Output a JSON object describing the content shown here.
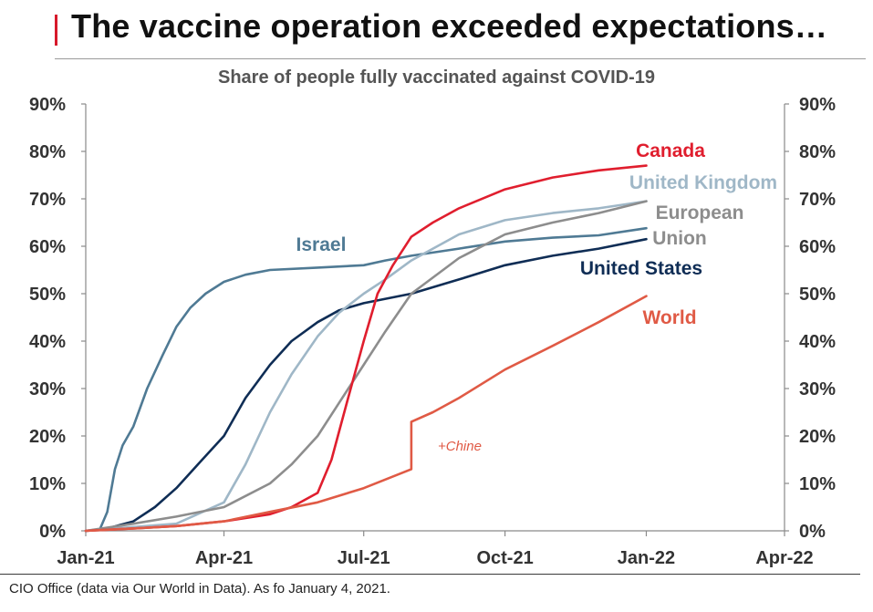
{
  "header": {
    "title": "The vaccine operation exceeded expectations…",
    "accent": "#d7192b"
  },
  "footer": {
    "source": "CIO Office (data via Our World in Data). As fo January 4, 2021."
  },
  "chart_data": {
    "type": "line",
    "title": "Share of people fully vaccinated against COVID-19",
    "xlabel": "",
    "ylabel": "",
    "x_ticks": [
      "Jan-21",
      "Apr-21",
      "Jul-21",
      "Oct-21",
      "Jan-22",
      "Apr-22"
    ],
    "y_ticks": [
      "0%",
      "10%",
      "20%",
      "30%",
      "40%",
      "50%",
      "60%",
      "70%",
      "80%",
      "90%"
    ],
    "ylim": [
      0,
      90
    ],
    "xlim": [
      "2021-01-01",
      "2022-04-01"
    ],
    "grid": false,
    "secondary_y_axis": true,
    "series": [
      {
        "name": "Israel",
        "color": "#4f7a94",
        "x": [
          "2021-01-01",
          "2021-01-10",
          "2021-01-15",
          "2021-01-20",
          "2021-01-25",
          "2021-02-01",
          "2021-02-10",
          "2021-02-20",
          "2021-03-01",
          "2021-03-10",
          "2021-03-20",
          "2021-04-01",
          "2021-04-15",
          "2021-05-01",
          "2021-06-01",
          "2021-07-01",
          "2021-07-15",
          "2021-08-01",
          "2021-09-01",
          "2021-10-01",
          "2021-11-01",
          "2021-12-01",
          "2022-01-01"
        ],
        "values": [
          0,
          0.2,
          4,
          13,
          18,
          22,
          30,
          37,
          43,
          47,
          50,
          52.5,
          54,
          55,
          55.5,
          56,
          57,
          58,
          59.5,
          61,
          61.8,
          62.3,
          63.8
        ]
      },
      {
        "name": "United States",
        "color": "#0f2d55",
        "x": [
          "2021-01-01",
          "2021-01-15",
          "2021-02-01",
          "2021-02-15",
          "2021-03-01",
          "2021-03-15",
          "2021-04-01",
          "2021-04-15",
          "2021-05-01",
          "2021-05-15",
          "2021-06-01",
          "2021-06-15",
          "2021-07-01",
          "2021-08-01",
          "2021-09-01",
          "2021-10-01",
          "2021-11-01",
          "2021-12-01",
          "2022-01-01"
        ],
        "values": [
          0,
          0.5,
          2,
          5,
          9,
          14,
          20,
          28,
          35,
          40,
          44,
          46.5,
          48,
          50,
          53,
          56,
          58,
          59.5,
          61.5
        ]
      },
      {
        "name": "United Kingdom",
        "color": "#9fb7c7",
        "x": [
          "2021-01-01",
          "2021-02-01",
          "2021-03-01",
          "2021-04-01",
          "2021-04-15",
          "2021-05-01",
          "2021-05-15",
          "2021-06-01",
          "2021-06-15",
          "2021-07-01",
          "2021-07-15",
          "2021-08-01",
          "2021-09-01",
          "2021-10-01",
          "2021-11-01",
          "2021-12-01",
          "2022-01-01"
        ],
        "values": [
          0,
          0.8,
          1.5,
          6,
          14,
          25,
          33,
          41,
          46,
          50,
          53,
          57,
          62.5,
          65.5,
          67,
          68,
          69.5
        ]
      },
      {
        "name": "European Union",
        "color": "#8d8d8d",
        "x": [
          "2021-01-01",
          "2021-02-01",
          "2021-03-01",
          "2021-04-01",
          "2021-05-01",
          "2021-05-15",
          "2021-06-01",
          "2021-06-15",
          "2021-07-01",
          "2021-07-15",
          "2021-08-01",
          "2021-09-01",
          "2021-10-01",
          "2021-11-01",
          "2021-12-01",
          "2022-01-01"
        ],
        "values": [
          0,
          1.5,
          3,
          5,
          10,
          14,
          20,
          27,
          35,
          42,
          50,
          57.5,
          62.5,
          65,
          67,
          69.5
        ]
      },
      {
        "name": "Canada",
        "color": "#e01e2e",
        "x": [
          "2021-01-01",
          "2021-02-01",
          "2021-03-01",
          "2021-04-01",
          "2021-05-01",
          "2021-05-15",
          "2021-06-01",
          "2021-06-10",
          "2021-06-20",
          "2021-07-01",
          "2021-07-10",
          "2021-07-20",
          "2021-08-01",
          "2021-08-15",
          "2021-09-01",
          "2021-10-01",
          "2021-11-01",
          "2021-12-01",
          "2022-01-01"
        ],
        "values": [
          0,
          0.5,
          1,
          2,
          3.5,
          5,
          8,
          15,
          27,
          40,
          50,
          56,
          62,
          65,
          68,
          72,
          74.5,
          76,
          77
        ]
      },
      {
        "name": "World",
        "color": "#e05a45",
        "x": [
          "2021-01-01",
          "2021-02-01",
          "2021-03-01",
          "2021-04-01",
          "2021-05-01",
          "2021-06-01",
          "2021-07-01",
          "2021-08-01",
          "2021-08-01",
          "2021-08-15",
          "2021-09-01",
          "2021-10-01",
          "2021-11-01",
          "2021-12-01",
          "2022-01-01"
        ],
        "values": [
          0,
          0.5,
          1,
          2,
          4,
          6,
          9,
          13,
          23,
          25,
          28,
          34,
          39,
          44,
          49.5
        ]
      }
    ],
    "annotations": [
      {
        "text": "+Chine",
        "color": "#e05a45"
      }
    ]
  }
}
